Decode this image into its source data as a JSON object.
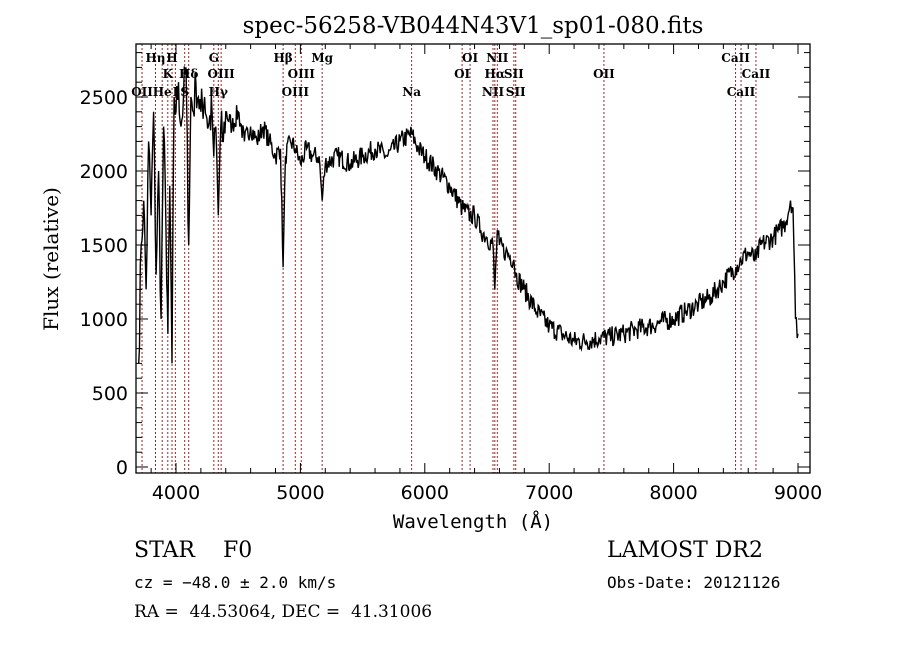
{
  "chart_data": {
    "type": "line",
    "title": "spec-56258-VB044N43V1_sp01-080.fits",
    "xlabel": "Wavelength (Å)",
    "ylabel": "Flux (relative)",
    "xlim": [
      3700,
      9080
    ],
    "ylim": [
      0,
      2860
    ],
    "xticks": [
      4000,
      5000,
      6000,
      7000,
      8000,
      9000
    ],
    "xtick_labels": [
      "4000",
      "5000",
      "6000",
      "7000",
      "8000",
      "9000"
    ],
    "yticks": [
      0,
      500,
      1000,
      1500,
      2000,
      2500
    ],
    "ytick_labels": [
      "0",
      "500",
      "1000",
      "1500",
      "2000",
      "2500"
    ],
    "grid": false,
    "series": [
      {
        "name": "spectrum",
        "x": [
          3700,
          3720,
          3740,
          3760,
          3780,
          3800,
          3820,
          3840,
          3860,
          3880,
          3900,
          3920,
          3935,
          3950,
          3968,
          3985,
          4000,
          4020,
          4040,
          4060,
          4080,
          4102,
          4120,
          4140,
          4160,
          4180,
          4200,
          4230,
          4260,
          4290,
          4304,
          4320,
          4340,
          4360,
          4380,
          4400,
          4450,
          4500,
          4550,
          4600,
          4650,
          4700,
          4750,
          4800,
          4840,
          4861,
          4880,
          4920,
          4960,
          5000,
          5050,
          5100,
          5150,
          5175,
          5200,
          5300,
          5400,
          5500,
          5600,
          5700,
          5800,
          5894,
          5950,
          6000,
          6100,
          6200,
          6300,
          6364,
          6400,
          6450,
          6500,
          6548,
          6563,
          6583,
          6600,
          6650,
          6716,
          6731,
          6800,
          6900,
          7000,
          7100,
          7200,
          7300,
          7400,
          7500,
          7600,
          7700,
          7800,
          7900,
          8000,
          8100,
          8200,
          8300,
          8400,
          8500,
          8542,
          8600,
          8662,
          8700,
          8800,
          8850,
          8900,
          8940,
          8960,
          8980,
          9000
        ],
        "y": [
          700,
          1500,
          1800,
          1200,
          2200,
          1700,
          2400,
          1300,
          2000,
          1000,
          2300,
          1600,
          900,
          1900,
          700,
          2500,
          2400,
          2600,
          2300,
          2500,
          2700,
          1500,
          2500,
          2400,
          2600,
          2500,
          2400,
          2500,
          2300,
          2400,
          2100,
          2300,
          1700,
          2300,
          2200,
          2400,
          2300,
          2400,
          2200,
          2300,
          2200,
          2300,
          2200,
          2100,
          2150,
          1350,
          2100,
          2200,
          2150,
          2050,
          2150,
          2100,
          2100,
          1800,
          2050,
          2100,
          2050,
          2100,
          2150,
          2100,
          2200,
          2250,
          2150,
          2100,
          2000,
          1900,
          1750,
          1700,
          1700,
          1600,
          1550,
          1500,
          1200,
          1600,
          1500,
          1450,
          1400,
          1300,
          1200,
          1050,
          950,
          900,
          850,
          850,
          870,
          880,
          900,
          930,
          950,
          980,
          1000,
          1050,
          1100,
          1150,
          1250,
          1350,
          1400,
          1450,
          1400,
          1500,
          1550,
          1600,
          1650,
          1800,
          1750,
          1000,
          900
        ]
      }
    ],
    "lines": [
      {
        "label": "OII",
        "wavelength": 3727,
        "row": 3
      },
      {
        "label": "Hη",
        "wavelength": 3835,
        "row": 1
      },
      {
        "label": "He",
        "wavelength": 3889,
        "row": 3
      },
      {
        "label": "K",
        "wavelength": 3934,
        "row": 2
      },
      {
        "label": "H",
        "wavelength": 3968,
        "row": 1
      },
      {
        "label": "I",
        "wavelength": 3995,
        "row": 3
      },
      {
        "label": "S",
        "wavelength": 4070,
        "row": 3
      },
      {
        "label": "Hδ",
        "wavelength": 4102,
        "row": 2
      },
      {
        "label": "G",
        "wavelength": 4304,
        "row": 1
      },
      {
        "label": "Hγ",
        "wavelength": 4340,
        "row": 3
      },
      {
        "label": "OIII",
        "wavelength": 4363,
        "row": 2
      },
      {
        "label": "Hβ",
        "wavelength": 4861,
        "row": 1
      },
      {
        "label": "OIII",
        "wavelength": 4959,
        "row": 3
      },
      {
        "label": "OIII",
        "wavelength": 5007,
        "row": 2
      },
      {
        "label": "Mg",
        "wavelength": 5175,
        "row": 1
      },
      {
        "label": "Na",
        "wavelength": 5894,
        "row": 3
      },
      {
        "label": "OI",
        "wavelength": 6300,
        "row": 2
      },
      {
        "label": "OI",
        "wavelength": 6364,
        "row": 1
      },
      {
        "label": "NII",
        "wavelength": 6548,
        "row": 3
      },
      {
        "label": "Hα",
        "wavelength": 6563,
        "row": 2
      },
      {
        "label": "NII",
        "wavelength": 6583,
        "row": 1
      },
      {
        "label": "SII",
        "wavelength": 6716,
        "row": 2
      },
      {
        "label": "SII",
        "wavelength": 6731,
        "row": 3
      },
      {
        "label": "OII",
        "wavelength": 7440,
        "row": 2
      },
      {
        "label": "CaII",
        "wavelength": 8498,
        "row": 1
      },
      {
        "label": "CaII",
        "wavelength": 8542,
        "row": 3
      },
      {
        "label": "CaII",
        "wavelength": 8662,
        "row": 2
      }
    ],
    "line_color": "#8b2b2b"
  },
  "info": {
    "object_class": "STAR",
    "subclass": "F0",
    "redshift": "cz = −48.0 ± 2.0 km/s",
    "coords": "RA =  44.53064, DEC =  41.31006",
    "survey": "LAMOST DR2",
    "obs_date": "Obs-Date: 20121126"
  }
}
